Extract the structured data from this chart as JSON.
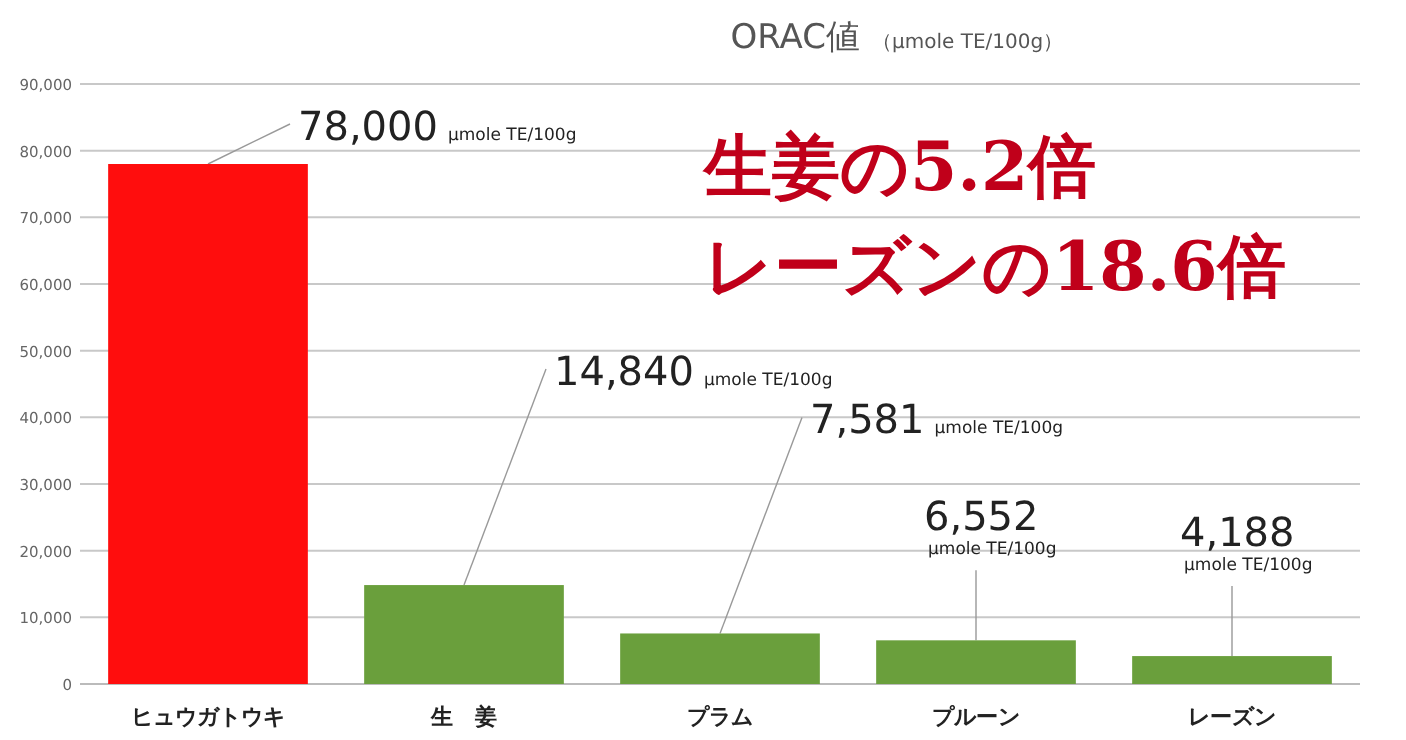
{
  "chart_data": {
    "type": "bar",
    "title": "ORAC値",
    "subtitle": "（µmole TE/100g）",
    "categories": [
      "ヒュウガトウキ",
      "生　姜",
      "プラム",
      "プルーン",
      "レーズン"
    ],
    "values": [
      78000,
      14840,
      7581,
      6552,
      4188
    ],
    "colors": [
      "#ff0d0d",
      "#6a9f3c",
      "#6a9f3c",
      "#6a9f3c",
      "#6a9f3c"
    ],
    "value_labels": [
      "78,000 µmole TE/100g",
      "14,840 µmole TE/100g",
      "7,581 µmole TE/100g",
      "6,552 µmole TE/100g",
      "4,188 µmole TE/100g"
    ],
    "annotations": [
      "生姜の5.2倍",
      "レーズンの18.6倍"
    ],
    "ylim": [
      0,
      90000
    ],
    "yticks": [
      {
        "value": 0,
        "label": "0"
      },
      {
        "value": 10000,
        "label": "10,000"
      },
      {
        "value": 20000,
        "label": "20,000"
      },
      {
        "value": 30000,
        "label": "30,000"
      },
      {
        "value": 40000,
        "label": "40,000"
      },
      {
        "value": 50000,
        "label": "50,000"
      },
      {
        "value": 60000,
        "label": "60,000"
      },
      {
        "value": 70000,
        "label": "70,000"
      },
      {
        "value": 80000,
        "label": "80,000"
      },
      {
        "value": 90000,
        "label": "90,000"
      }
    ],
    "grid": "y"
  }
}
